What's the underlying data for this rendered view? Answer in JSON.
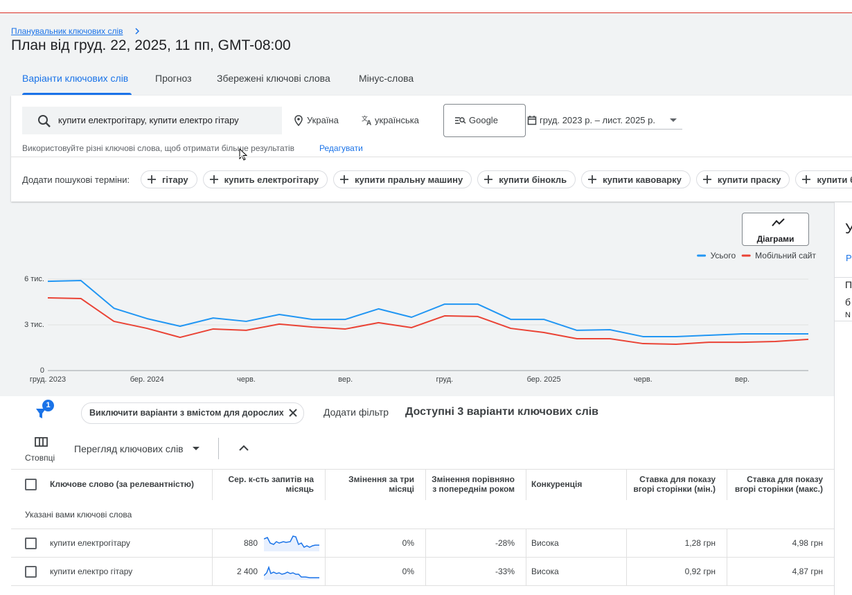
{
  "header": {
    "breadcrumb": "Планувальник ключових слів",
    "title": "План від груд. 22, 2025, 11 пп, GMT-08:00"
  },
  "tabs": [
    "Варіанти ключових слів",
    "Прогноз",
    "Збережені ключові слова",
    "Мінус-слова"
  ],
  "search": {
    "query": "купити електрогітару, купити електро гітару",
    "location": "Україна",
    "language": "українська",
    "network": "Google",
    "date_range": "груд. 2023 р. – лист. 2025 р.",
    "hint": "Використовуйте різні ключові слова, щоб отримати більше результатів",
    "edit": "Редагувати"
  },
  "add_terms": {
    "label": "Додати пошукові терміни:",
    "chips": [
      "гітару",
      "купить електрогітару",
      "купити пральну машину",
      "купити бінокль",
      "купити кавоварку",
      "купити праску",
      "купити бігову доріжку"
    ]
  },
  "chart_button": "Діаграми",
  "chart_data": {
    "type": "line",
    "categories": [
      "груд. 2023",
      null,
      null,
      "бер. 2024",
      null,
      null,
      "черв.",
      null,
      null,
      "вер.",
      null,
      null,
      "груд.",
      null,
      null,
      "бер. 2025",
      null,
      null,
      "черв.",
      null,
      null,
      "вер.",
      null,
      null
    ],
    "series": [
      {
        "name": "Усього",
        "color": "#2196f3",
        "values": [
          5860,
          5910,
          4090,
          3410,
          2910,
          3450,
          3230,
          3680,
          3360,
          3360,
          4050,
          3500,
          4360,
          4360,
          3360,
          3360,
          2640,
          2680,
          2230,
          2230,
          2320,
          2410,
          2410,
          2410
        ]
      },
      {
        "name": "Мобільний сайт",
        "color": "#ea4335",
        "values": [
          4770,
          4730,
          3230,
          2770,
          2180,
          2730,
          2640,
          3050,
          2860,
          2730,
          3140,
          2820,
          3590,
          3550,
          2770,
          2500,
          2090,
          2090,
          1770,
          1730,
          1860,
          1860,
          1910,
          2050
        ]
      }
    ],
    "ylim": [
      0,
      6000
    ],
    "yticks": [
      0,
      {
        "value": 3000,
        "label": "3 тис."
      },
      {
        "value": 6000,
        "label": "6 тис."
      }
    ],
    "grid": true,
    "legend": "top-right"
  },
  "filters": {
    "badge": "1",
    "chip": "Виключити варіанти з вмістом для дорослих",
    "add": "Додати фільтр",
    "summary": "Доступні 3 варіанти ключових слів"
  },
  "toolbar": {
    "columns": "Стовпці",
    "view": "Перегляд ключових слів"
  },
  "table": {
    "headers": [
      "Ключове слово (за релевантністю)",
      "Сер. к-сть запитів на місяць",
      "Змінення за три місяці",
      "Змінення порівняно з попереднім роком",
      "Конкуренція",
      "Ставка для показу вгорі сторінки (мін.)",
      "Ставка для показу вгорі сторінки (макс.)"
    ],
    "group": "Указані вами ключові слова",
    "rows": [
      [
        "купити електрогітару",
        "880",
        "0%",
        "-28%",
        "Висока",
        "1,28 грн",
        "4,98 грн"
      ],
      [
        "купити електро гітару",
        "2 400",
        "0%",
        "-33%",
        "Висока",
        "0,92 грн",
        "4,87 грн"
      ]
    ]
  },
  "side_panel": [
    "У",
    "Р",
    "П",
    "б",
    "N"
  ]
}
